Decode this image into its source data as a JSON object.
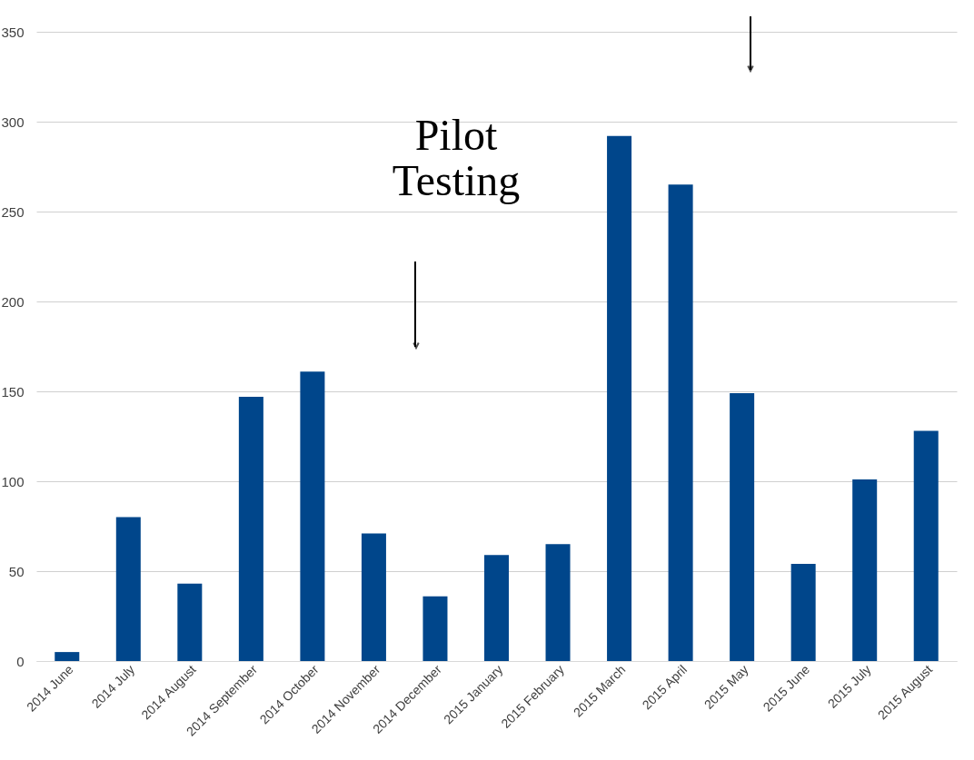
{
  "chart_data": {
    "type": "bar",
    "categories": [
      "2014 June",
      "2014 July",
      "2014 August",
      "2014 September",
      "2014 October",
      "2014 November",
      "2014 December",
      "2015 January",
      "2015 February",
      "2015 March",
      "2015 April",
      "2015 May",
      "2015 June",
      "2015 July",
      "2015 August"
    ],
    "values": [
      5,
      80,
      43,
      147,
      161,
      71,
      36,
      59,
      65,
      292,
      265,
      149,
      54,
      101,
      128
    ],
    "color": "#00468b",
    "ylim": [
      0,
      350
    ],
    "yticks": [
      0,
      50,
      100,
      150,
      200,
      250,
      300,
      350
    ],
    "grid": "y",
    "annotations": [
      "Pilot Testing"
    ]
  }
}
